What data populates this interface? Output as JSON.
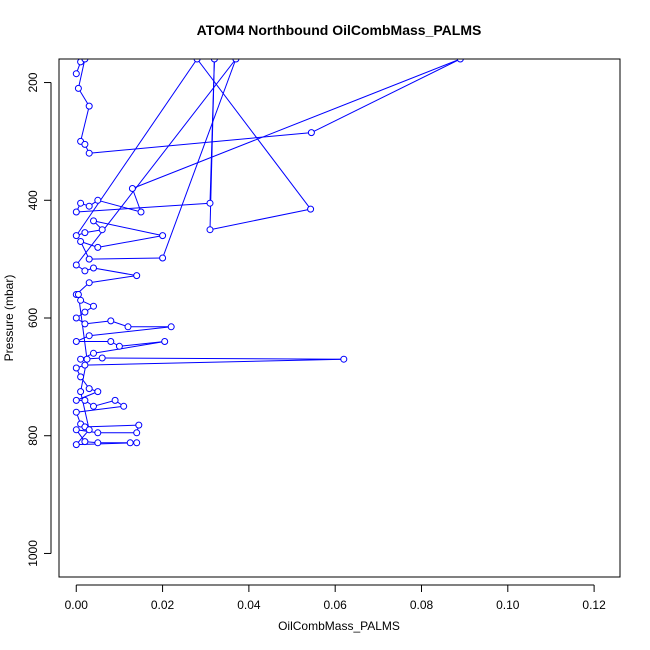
{
  "chart_data": {
    "type": "line",
    "title": "ATOM4 Northbound OilCombMass_PALMS",
    "xlabel": "OilCombMass_PALMS",
    "ylabel": "Pressure (mbar)",
    "xlim": [
      -0.004,
      0.126
    ],
    "ylim": [
      1040,
      160
    ],
    "y_reversed": true,
    "x_ticks": [
      0.0,
      0.02,
      0.04,
      0.06,
      0.08,
      0.1,
      0.12
    ],
    "x_tick_labels": [
      "0.00",
      "0.02",
      "0.04",
      "0.06",
      "0.08",
      "0.10",
      "0.12"
    ],
    "y_ticks": [
      200,
      400,
      600,
      800,
      1000
    ],
    "y_tick_labels": [
      "200",
      "400",
      "600",
      "800",
      "1000"
    ],
    "grid": false,
    "legend": "none",
    "series_color": "#0000ff",
    "series": [
      {
        "markers": true,
        "points": [
          [
            0.0,
            185
          ],
          [
            0.001,
            165
          ],
          [
            0.002,
            160
          ],
          [
            0.0005,
            210
          ],
          [
            0.003,
            240
          ],
          [
            0.001,
            300
          ],
          [
            0.002,
            305
          ],
          [
            0.003,
            320
          ],
          [
            0.0545,
            285
          ],
          [
            0.089,
            160
          ],
          [
            0.013,
            380
          ],
          [
            0.015,
            420
          ],
          [
            0.005,
            400
          ],
          [
            0.003,
            410
          ],
          [
            0.001,
            405
          ],
          [
            0.0,
            420
          ],
          [
            0.031,
            405
          ],
          [
            0.032,
            160
          ],
          [
            0.031,
            450
          ],
          [
            0.0543,
            415
          ],
          [
            0.028,
            160
          ],
          [
            0.0,
            460
          ],
          [
            0.002,
            455
          ],
          [
            0.006,
            450
          ],
          [
            0.004,
            435
          ],
          [
            0.02,
            460
          ],
          [
            0.005,
            480
          ],
          [
            0.001,
            470
          ],
          [
            0.003,
            500
          ],
          [
            0.02,
            498
          ],
          [
            0.037,
            160
          ],
          [
            0.0,
            510
          ],
          [
            0.002,
            520
          ],
          [
            0.004,
            515
          ],
          [
            0.014,
            528
          ],
          [
            0.003,
            540
          ],
          [
            0.0,
            560
          ],
          [
            0.001,
            570
          ],
          [
            0.004,
            580
          ],
          [
            0.002,
            590
          ],
          [
            0.0,
            600
          ],
          [
            0.002,
            610
          ],
          [
            0.008,
            605
          ],
          [
            0.012,
            615
          ],
          [
            0.022,
            615
          ],
          [
            0.003,
            630
          ],
          [
            0.0,
            640
          ],
          [
            0.008,
            640
          ],
          [
            0.01,
            648
          ],
          [
            0.0205,
            640
          ],
          [
            0.004,
            660
          ],
          [
            0.001,
            670
          ],
          [
            0.006,
            668
          ],
          [
            0.062,
            670
          ],
          [
            0.002,
            680
          ],
          [
            0.0,
            685
          ],
          [
            0.001,
            700
          ],
          [
            0.003,
            720
          ],
          [
            0.005,
            725
          ],
          [
            0.0,
            740
          ],
          [
            0.002,
            740
          ],
          [
            0.004,
            750
          ],
          [
            0.009,
            740
          ],
          [
            0.011,
            750
          ],
          [
            0.0,
            760
          ],
          [
            0.001,
            780
          ],
          [
            0.002,
            785
          ],
          [
            0.0145,
            782
          ],
          [
            0.014,
            795
          ],
          [
            0.005,
            795
          ],
          [
            0.0,
            790
          ],
          [
            0.002,
            810
          ],
          [
            0.005,
            812
          ],
          [
            0.0125,
            812
          ],
          [
            0.014,
            812
          ],
          [
            0.0,
            815
          ],
          [
            0.003,
            790
          ],
          [
            0.001,
            725
          ],
          [
            0.0025,
            670
          ],
          [
            0.0005,
            560
          ]
        ]
      }
    ]
  }
}
